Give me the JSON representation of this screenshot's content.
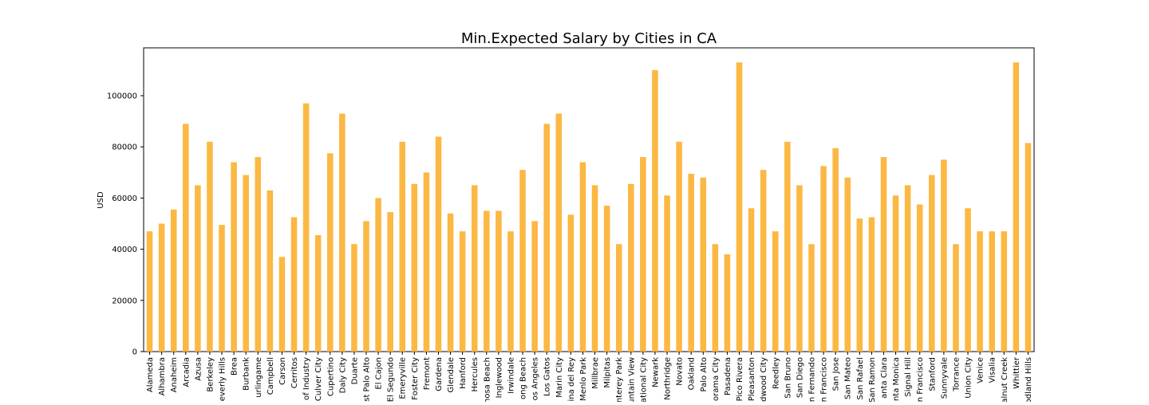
{
  "chart_data": {
    "type": "bar",
    "title": "Min.Expected Salary by Cities in CA",
    "y_label": "USD",
    "categories": [
      "Alameda",
      "Alhambra",
      "Anaheim",
      "Arcadia",
      "Azusa",
      "Berkeley",
      "everly Hills",
      "Brea",
      "Burbank",
      "urlingame",
      "Campbell",
      "Carson",
      "Cerritos",
      "of Industry",
      "Culver City",
      "Cupertino",
      "Daly City",
      "Duarte",
      "st Palo Alto",
      "El Cajon",
      "El Segundo",
      "Emeryville",
      "Foster City",
      "Fremont",
      "Gardena",
      "Glendale",
      "Hanford",
      "Hercules",
      "nosa Beach",
      "Inglewood",
      "Irwindale",
      "ong Beach",
      "os Angeles",
      "Los Gatos",
      "Marin City",
      "ina del Rey",
      "Menlo Park",
      "Millbrae",
      "Milpitas",
      "nterey Park",
      "untain View",
      "ational City",
      "Newark",
      "Northridge",
      "Novato",
      "Oakland",
      "Palo Alto",
      "orama City",
      "Pasadena",
      "Pico Rivera",
      "Pleasanton",
      "edwood City",
      "Reedley",
      "San Bruno",
      "San Diego",
      "n Fernando",
      "n Francisco",
      "San Jose",
      "San Mateo",
      "San Rafael",
      "San Ramon",
      "anta Clara",
      "anta Monica",
      "Signal Hill",
      "n Francisco",
      "Stanford",
      "Sunnyvale",
      "Torrance",
      "Union City",
      "Venice",
      "Visalia",
      "alnut Creek",
      "Whittier",
      "odland Hills"
    ],
    "values": [
      47000,
      50000,
      55500,
      89000,
      65000,
      82000,
      49500,
      74000,
      69000,
      76000,
      63000,
      37000,
      52500,
      97000,
      45500,
      77500,
      93000,
      42000,
      51000,
      60000,
      54500,
      82000,
      65500,
      70000,
      84000,
      54000,
      47000,
      65000,
      55000,
      55000,
      47000,
      71000,
      51000,
      89000,
      93000,
      53500,
      74000,
      65000,
      57000,
      42000,
      65500,
      76000,
      110000,
      61000,
      82000,
      69500,
      68000,
      42000,
      38000,
      113000,
      56000,
      71000,
      47000,
      82000,
      65000,
      42000,
      72500,
      79500,
      68000,
      52000,
      52500,
      76000,
      61000,
      65000,
      57500,
      69000,
      75000,
      42000,
      56000,
      47000,
      47000,
      47000,
      113000,
      81500
    ],
    "color": "#fbb843",
    "ylim": [
      0,
      118700
    ],
    "yticks": [
      0,
      20000,
      40000,
      60000,
      80000,
      100000
    ],
    "grid": false
  }
}
